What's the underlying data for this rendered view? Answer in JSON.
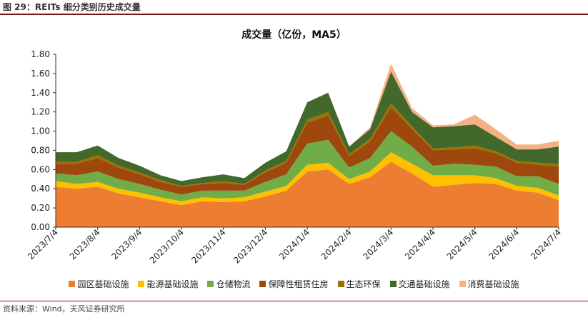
{
  "header": {
    "figure_title": "图 29：REITs 细分类别历史成交量"
  },
  "footer": {
    "source": "资料来源：Wind，天风证券研究所"
  },
  "colors": {
    "园区基础设施": "#ed7d31",
    "能源基础设施": "#ffc000",
    "仓储物流": "#70ad47",
    "保障性租赁住房": "#9e480e",
    "生态环保": "#997300",
    "交通基础设施": "#43682b",
    "消费基础设施": "#f4b183"
  },
  "chart_data": {
    "type": "area",
    "stacked": true,
    "title": "成交量（亿份，MA5）",
    "ylim": [
      0,
      1.8
    ],
    "yticks": [
      "0.00",
      "0.20",
      "0.40",
      "0.60",
      "0.80",
      "1.00",
      "1.20",
      "1.40",
      "1.60",
      "1.80"
    ],
    "xticks": [
      "2023/7/4",
      "2023/8/4",
      "2023/9/4",
      "2023/10/4",
      "2023/11/4",
      "2023/12/4",
      "2024/1/4",
      "2024/2/4",
      "2024/3/4",
      "2024/4/4",
      "2024/5/4",
      "2024/6/4",
      "2024/7/4"
    ],
    "grid": false,
    "legend_position": "bottom",
    "x": [
      "2023/7/4",
      "2023/7/18",
      "2023/8/4",
      "2023/8/18",
      "2023/9/4",
      "2023/9/18",
      "2023/10/4",
      "2023/10/18",
      "2023/11/4",
      "2023/11/18",
      "2023/12/4",
      "2023/12/18",
      "2024/1/4",
      "2024/1/18",
      "2024/2/4",
      "2024/2/18",
      "2024/3/4",
      "2024/3/18",
      "2024/4/4",
      "2024/4/18",
      "2024/5/4",
      "2024/5/18",
      "2024/6/4",
      "2024/6/18",
      "2024/7/4"
    ],
    "series": [
      {
        "name": "园区基础设施",
        "values": [
          0.42,
          0.4,
          0.42,
          0.35,
          0.31,
          0.27,
          0.23,
          0.27,
          0.26,
          0.27,
          0.32,
          0.38,
          0.58,
          0.6,
          0.45,
          0.52,
          0.68,
          0.56,
          0.42,
          0.44,
          0.46,
          0.45,
          0.38,
          0.36,
          0.28
        ]
      },
      {
        "name": "能源基础设施",
        "values": [
          0.06,
          0.05,
          0.05,
          0.05,
          0.05,
          0.04,
          0.04,
          0.04,
          0.04,
          0.04,
          0.05,
          0.05,
          0.07,
          0.07,
          0.05,
          0.06,
          0.1,
          0.1,
          0.12,
          0.1,
          0.08,
          0.06,
          0.05,
          0.05,
          0.05
        ]
      },
      {
        "name": "仓储物流",
        "values": [
          0.08,
          0.09,
          0.11,
          0.1,
          0.09,
          0.08,
          0.07,
          0.07,
          0.08,
          0.07,
          0.1,
          0.12,
          0.22,
          0.24,
          0.12,
          0.14,
          0.22,
          0.18,
          0.1,
          0.12,
          0.11,
          0.12,
          0.1,
          0.12,
          0.12
        ]
      },
      {
        "name": "保障性租赁住房",
        "values": [
          0.1,
          0.12,
          0.14,
          0.12,
          0.1,
          0.08,
          0.08,
          0.07,
          0.08,
          0.06,
          0.1,
          0.12,
          0.22,
          0.25,
          0.12,
          0.17,
          0.25,
          0.18,
          0.16,
          0.15,
          0.17,
          0.14,
          0.14,
          0.12,
          0.18
        ]
      },
      {
        "name": "生态环保",
        "values": [
          0.02,
          0.02,
          0.03,
          0.02,
          0.02,
          0.02,
          0.01,
          0.01,
          0.02,
          0.01,
          0.02,
          0.02,
          0.03,
          0.04,
          0.02,
          0.03,
          0.04,
          0.03,
          0.02,
          0.02,
          0.03,
          0.02,
          0.02,
          0.02,
          0.03
        ]
      },
      {
        "name": "交通基础设施",
        "values": [
          0.1,
          0.1,
          0.1,
          0.08,
          0.07,
          0.05,
          0.05,
          0.06,
          0.07,
          0.06,
          0.08,
          0.1,
          0.18,
          0.2,
          0.08,
          0.1,
          0.33,
          0.15,
          0.22,
          0.22,
          0.22,
          0.15,
          0.12,
          0.14,
          0.18
        ]
      },
      {
        "name": "消费基础设施",
        "values": [
          0.0,
          0.0,
          0.0,
          0.0,
          0.0,
          0.0,
          0.0,
          0.0,
          0.0,
          0.0,
          0.0,
          0.0,
          0.0,
          0.0,
          0.0,
          0.02,
          0.08,
          0.04,
          0.02,
          0.02,
          0.1,
          0.08,
          0.05,
          0.05,
          0.06
        ]
      }
    ]
  }
}
